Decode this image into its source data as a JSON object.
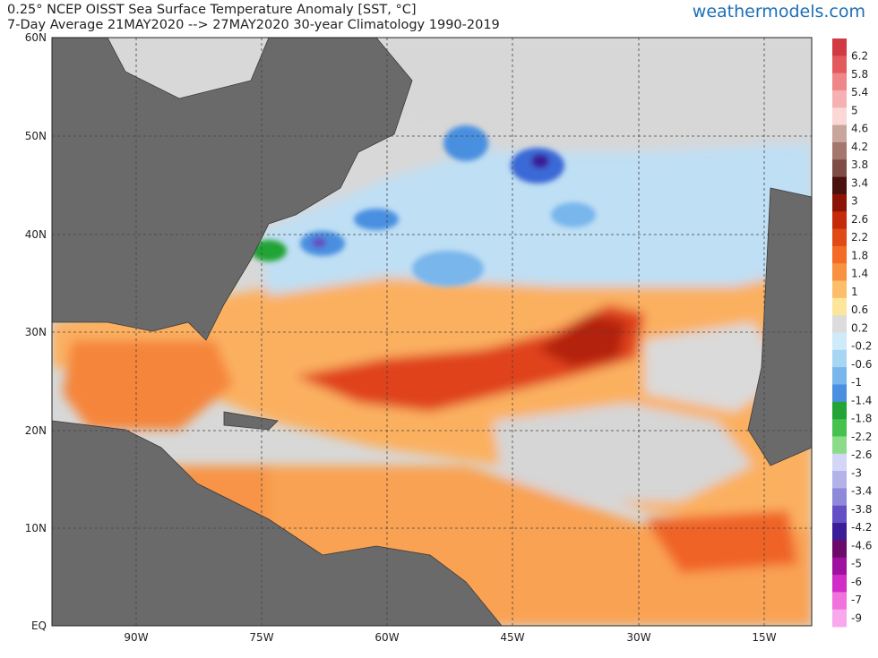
{
  "header": {
    "title_line1": "0.25° NCEP OISST Sea Surface Temperature Anomaly [SST, °C]",
    "title_line2": "7-Day Average 21MAY2020 --> 27MAY2020  30-year Climatology 1990-2019",
    "brand": "weathermodels.com"
  },
  "map": {
    "lat_labels": [
      "60N",
      "50N",
      "40N",
      "30N",
      "20N",
      "10N",
      "EQ"
    ],
    "lon_labels": [
      "90W",
      "75W",
      "60W",
      "45W",
      "30W",
      "15W"
    ]
  },
  "colorbar": {
    "labels": [
      "6.2",
      "5.8",
      "5.4",
      "5",
      "4.6",
      "4.2",
      "3.8",
      "3.4",
      "3",
      "2.6",
      "2.2",
      "1.8",
      "1.4",
      "1",
      "0.6",
      "0.2",
      "-0.2",
      "-0.6",
      "-1",
      "-1.4",
      "-1.8",
      "-2.2",
      "-2.6",
      "-3",
      "-3.4",
      "-3.8",
      "-4.2",
      "-4.6",
      "-5",
      "-6",
      "-7",
      "-9"
    ],
    "colors": [
      "#d13a40",
      "#e35a5e",
      "#ef8789",
      "#f6b2b3",
      "#fbd8d6",
      "#c9a69c",
      "#a4776c",
      "#7e4e45",
      "#4a120c",
      "#8c1406",
      "#c52a0a",
      "#e04a14",
      "#f36b26",
      "#f89241",
      "#fcbe6b",
      "#fde69c",
      "#dcdcdc",
      "#cfeaf8",
      "#a7d6f3",
      "#78b6ec",
      "#4a8fe0",
      "#24a336",
      "#46c14e",
      "#8adc8a",
      "#d4d6f5",
      "#b3b3ea",
      "#8f89dc",
      "#6450c4",
      "#3b1d98",
      "#6c0a6c",
      "#a010a0",
      "#d22cc8",
      "#f072dc",
      "#f8a9ec"
    ]
  }
}
